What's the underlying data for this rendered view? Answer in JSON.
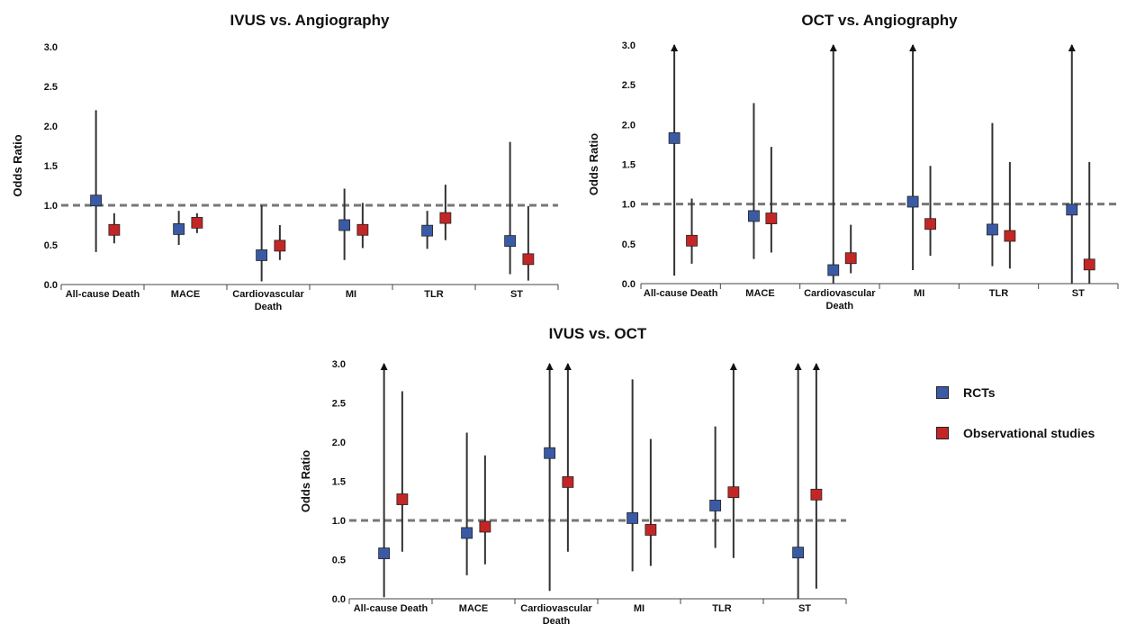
{
  "colors": {
    "rcts": "#3b5aa6",
    "observational": "#c42626",
    "ci": "#333333",
    "ref": "#777777"
  },
  "legend": {
    "rcts": "RCTs",
    "observational": "Observational studies"
  },
  "chart_data": [
    {
      "type": "forest",
      "title": "IVUS vs. Angiography",
      "ylabel": "Odds Ratio",
      "ylim": [
        0,
        3
      ],
      "yticks": [
        "0.0",
        "0.5",
        "1.0",
        "1.5",
        "2.0",
        "2.5",
        "3.0"
      ],
      "reference": 1.0,
      "categories": [
        "All-cause Death",
        "MACE",
        "Cardiovascular Death",
        "MI",
        "TLR",
        "ST"
      ],
      "category_lines": [
        [
          "All-cause Death"
        ],
        [
          "MACE"
        ],
        [
          "Cardiovascular",
          "Death"
        ],
        [
          "MI"
        ],
        [
          "TLR"
        ],
        [
          "ST"
        ]
      ],
      "series": [
        {
          "name": "RCTs",
          "points": [
            {
              "or": 1.06,
              "lo": 0.41,
              "hi": 2.2
            },
            {
              "or": 0.7,
              "lo": 0.5,
              "hi": 0.93
            },
            {
              "or": 0.37,
              "lo": 0.04,
              "hi": 1.0
            },
            {
              "or": 0.75,
              "lo": 0.31,
              "hi": 1.21
            },
            {
              "or": 0.68,
              "lo": 0.45,
              "hi": 0.93
            },
            {
              "or": 0.55,
              "lo": 0.13,
              "hi": 1.8
            }
          ]
        },
        {
          "name": "Observational studies",
          "points": [
            {
              "or": 0.69,
              "lo": 0.52,
              "hi": 0.9
            },
            {
              "or": 0.78,
              "lo": 0.65,
              "hi": 0.9
            },
            {
              "or": 0.49,
              "lo": 0.31,
              "hi": 0.75
            },
            {
              "or": 0.69,
              "lo": 0.46,
              "hi": 1.03
            },
            {
              "or": 0.84,
              "lo": 0.56,
              "hi": 1.26
            },
            {
              "or": 0.32,
              "lo": 0.05,
              "hi": 0.99
            }
          ]
        }
      ]
    },
    {
      "type": "forest",
      "title": "OCT vs. Angiography",
      "ylabel": "Odds Ratio",
      "ylim": [
        0,
        3
      ],
      "yticks": [
        "0.0",
        "0.5",
        "1.0",
        "1.5",
        "2.0",
        "2.5",
        "3.0"
      ],
      "reference": 1.0,
      "categories": [
        "All-cause Death",
        "MACE",
        "Cardiovascular Death",
        "MI",
        "TLR",
        "ST"
      ],
      "category_lines": [
        [
          "All-cause Death"
        ],
        [
          "MACE"
        ],
        [
          "Cardiovascular",
          "Death"
        ],
        [
          "MI"
        ],
        [
          "TLR"
        ],
        [
          "ST"
        ]
      ],
      "series": [
        {
          "name": "RCTs",
          "points": [
            {
              "or": 1.83,
              "lo": 0.1,
              "hi": 3.0,
              "open_hi": true
            },
            {
              "or": 0.85,
              "lo": 0.31,
              "hi": 2.27
            },
            {
              "or": 0.17,
              "lo": 0.0,
              "hi": 3.0,
              "open_hi": true
            },
            {
              "or": 1.03,
              "lo": 0.17,
              "hi": 3.0,
              "open_hi": true
            },
            {
              "or": 0.68,
              "lo": 0.22,
              "hi": 2.02
            },
            {
              "or": 0.93,
              "lo": 0.0,
              "hi": 3.0,
              "open_hi": true
            }
          ]
        },
        {
          "name": "Observational studies",
          "points": [
            {
              "or": 0.54,
              "lo": 0.25,
              "hi": 1.07
            },
            {
              "or": 0.82,
              "lo": 0.39,
              "hi": 1.72
            },
            {
              "or": 0.32,
              "lo": 0.13,
              "hi": 0.74
            },
            {
              "or": 0.75,
              "lo": 0.35,
              "hi": 1.48
            },
            {
              "or": 0.6,
              "lo": 0.19,
              "hi": 1.53
            },
            {
              "or": 0.24,
              "lo": 0.0,
              "hi": 1.53
            }
          ]
        }
      ]
    },
    {
      "type": "forest",
      "title": "IVUS vs. OCT",
      "ylabel": "Odds Ratio",
      "ylim": [
        0,
        3
      ],
      "yticks": [
        "0.0",
        "0.5",
        "1.0",
        "1.5",
        "2.0",
        "2.5",
        "3.0"
      ],
      "reference": 1.0,
      "categories": [
        "All-cause Death",
        "MACE",
        "Cardiovascular Death",
        "MI",
        "TLR",
        "ST"
      ],
      "category_lines": [
        [
          "All-cause Death"
        ],
        [
          "MACE"
        ],
        [
          "Cardiovascular",
          "Death"
        ],
        [
          "MI"
        ],
        [
          "TLR"
        ],
        [
          "ST"
        ]
      ],
      "series": [
        {
          "name": "RCTs",
          "points": [
            {
              "or": 0.58,
              "lo": 0.02,
              "hi": 3.0,
              "open_hi": true
            },
            {
              "or": 0.84,
              "lo": 0.3,
              "hi": 2.12
            },
            {
              "or": 1.86,
              "lo": 0.1,
              "hi": 3.0,
              "open_hi": true
            },
            {
              "or": 1.03,
              "lo": 0.35,
              "hi": 2.8
            },
            {
              "or": 1.19,
              "lo": 0.65,
              "hi": 2.2
            },
            {
              "or": 0.59,
              "lo": 0.0,
              "hi": 3.0,
              "open_hi": true
            }
          ]
        },
        {
          "name": "Observational studies",
          "points": [
            {
              "or": 1.27,
              "lo": 0.6,
              "hi": 2.65
            },
            {
              "or": 0.92,
              "lo": 0.44,
              "hi": 1.83
            },
            {
              "or": 1.49,
              "lo": 0.6,
              "hi": 3.0,
              "open_hi": true
            },
            {
              "or": 0.88,
              "lo": 0.42,
              "hi": 2.04
            },
            {
              "or": 1.36,
              "lo": 0.52,
              "hi": 3.0,
              "open_hi": true
            },
            {
              "or": 1.33,
              "lo": 0.13,
              "hi": 3.0,
              "open_hi": true
            }
          ]
        }
      ]
    }
  ]
}
